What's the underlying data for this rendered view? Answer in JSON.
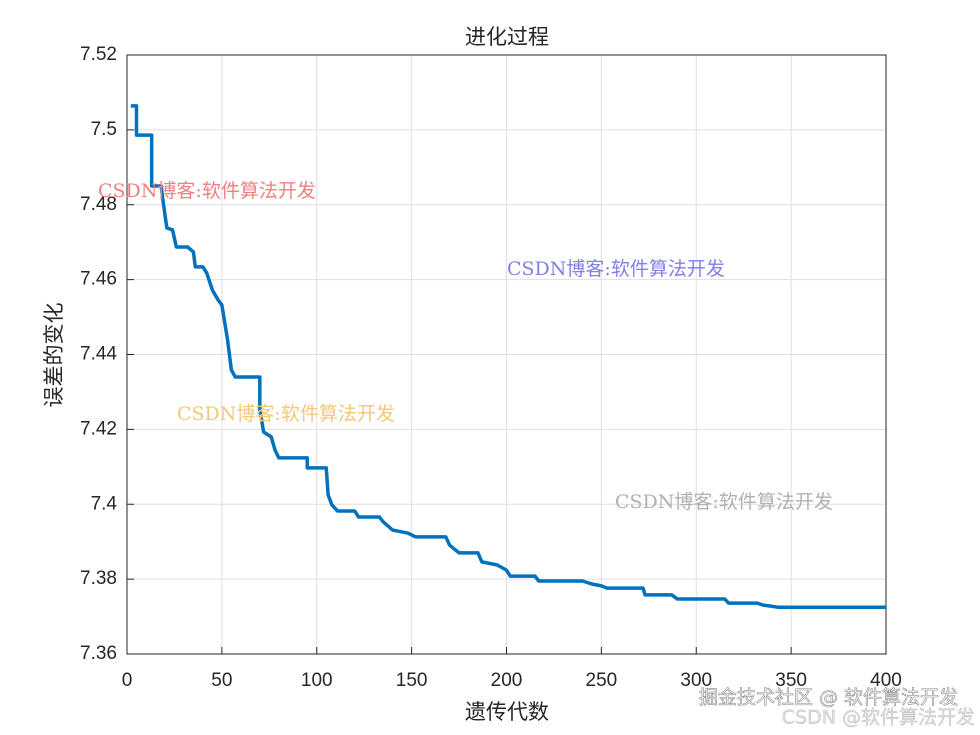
{
  "chart_data": {
    "type": "line",
    "title": "进化过程",
    "x_label": "遗传代数",
    "y_label": "误差的变化",
    "xlim": [
      0,
      400
    ],
    "ylim": [
      7.36,
      7.52
    ],
    "xticks": [
      0,
      50,
      100,
      150,
      200,
      250,
      300,
      350,
      400
    ],
    "yticks": [
      7.36,
      7.38,
      7.4,
      7.42,
      7.44,
      7.46,
      7.48,
      7.5,
      7.52
    ],
    "grid": true,
    "series": [
      {
        "color": "#0072bd",
        "x": [
          2,
          5,
          5,
          13,
          13,
          18,
          19,
          21,
          24,
          26,
          32,
          35,
          36,
          40,
          42,
          45,
          48,
          50,
          53,
          55,
          57,
          70,
          70,
          72,
          76,
          78,
          80,
          95,
          95,
          105,
          106,
          108,
          111,
          120,
          122,
          133,
          135,
          140,
          148,
          152,
          168,
          170,
          175,
          185,
          187,
          195,
          200,
          202,
          215,
          217,
          240,
          245,
          250,
          253,
          272,
          273,
          287,
          290,
          315,
          317,
          332,
          335,
          343,
          400
        ],
        "values": [
          7.5064,
          7.5064,
          7.4986,
          7.4986,
          7.485,
          7.485,
          7.481,
          7.4738,
          7.4733,
          7.4687,
          7.4687,
          7.4674,
          7.4634,
          7.4634,
          7.4618,
          7.4572,
          7.4546,
          7.4532,
          7.4439,
          7.4359,
          7.434,
          7.434,
          7.4252,
          7.4193,
          7.418,
          7.4145,
          7.4124,
          7.4124,
          7.4097,
          7.4097,
          7.4025,
          7.3998,
          7.3982,
          7.3982,
          7.3966,
          7.3966,
          7.3953,
          7.3931,
          7.3923,
          7.3913,
          7.3913,
          7.3891,
          7.387,
          7.387,
          7.3846,
          7.3838,
          7.3824,
          7.3808,
          7.3808,
          7.3795,
          7.3795,
          7.3787,
          7.3782,
          7.3776,
          7.3776,
          7.3758,
          7.3758,
          7.3747,
          7.3747,
          7.3736,
          7.3736,
          7.3731,
          7.3725,
          7.3725
        ]
      }
    ],
    "annotations": [
      {
        "text": "CSDN博客:软件算法开发",
        "color": "#f08080"
      },
      {
        "text": "CSDN博客:软件算法开发",
        "color": "#8080e8"
      },
      {
        "text": "CSDN博客:软件算法开发",
        "color": "#f5c77a"
      },
      {
        "text": "CSDN博客:软件算法开发",
        "color": "#b0b0b0"
      },
      {
        "text": "掘金技术社区 @ 软件算法开发",
        "color": "#ffffff"
      },
      {
        "text": "CSDN @软件算法开发",
        "color": "#e0e0e0"
      }
    ]
  }
}
